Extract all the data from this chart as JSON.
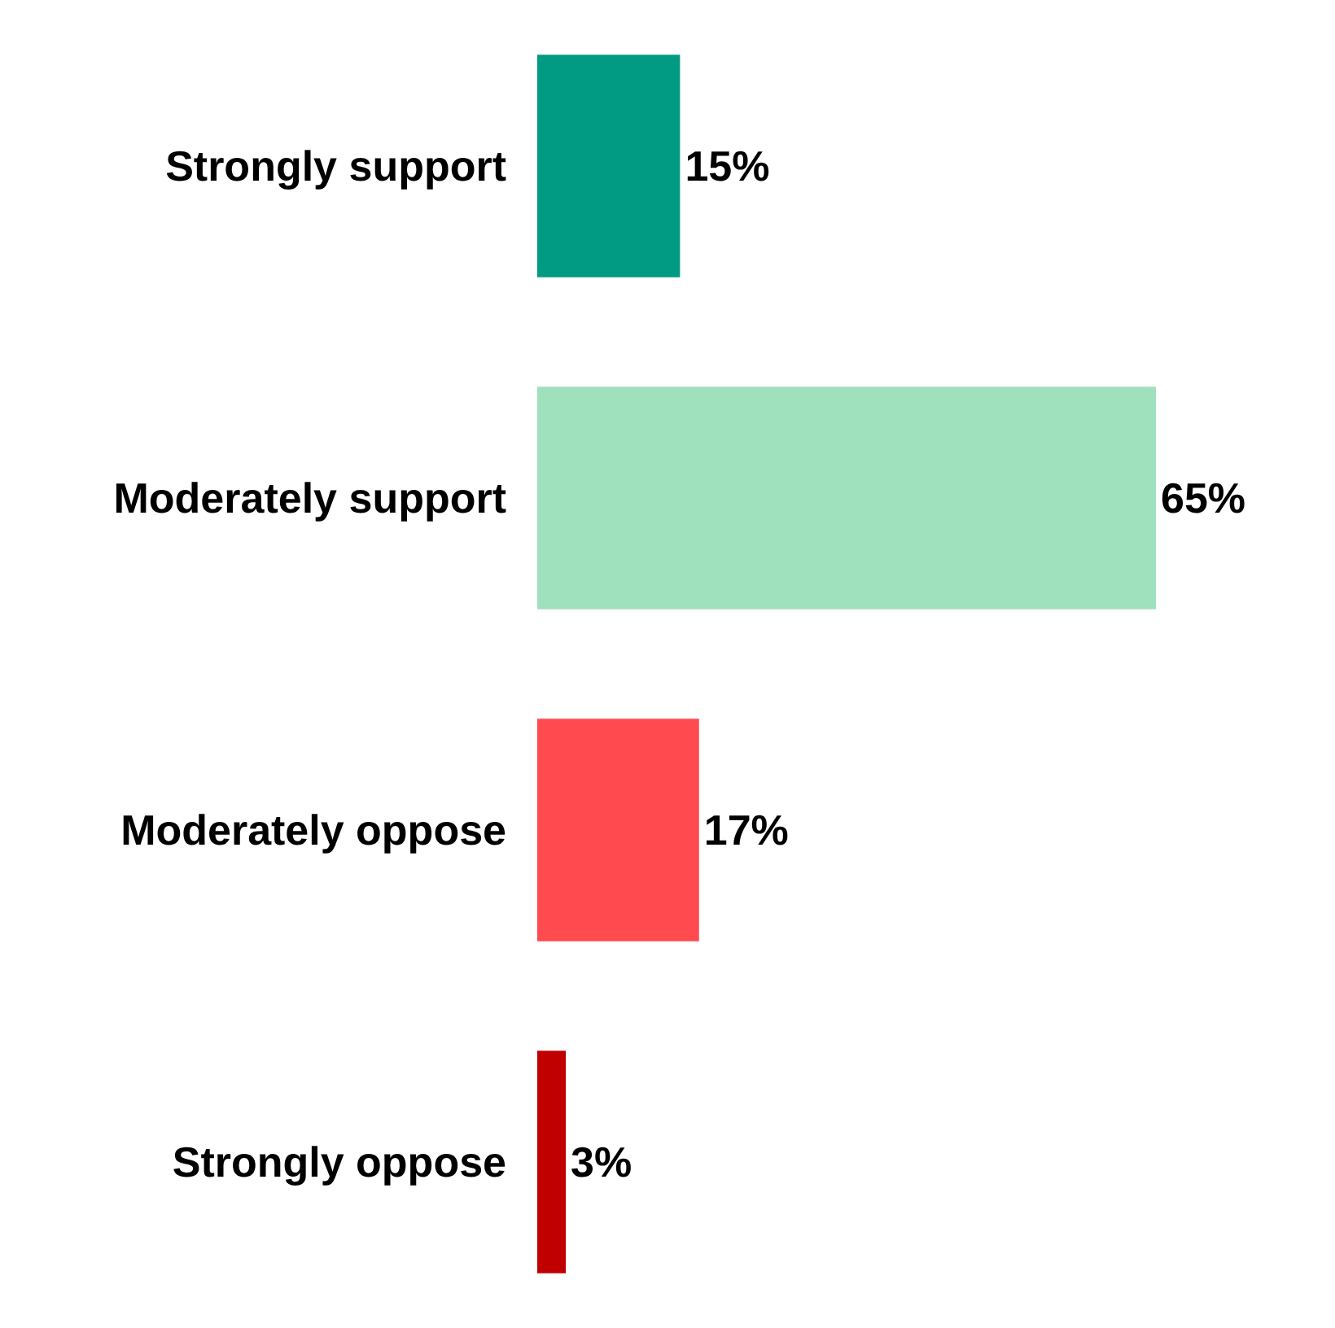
{
  "chart_data": {
    "type": "bar",
    "orientation": "horizontal",
    "categories": [
      "Strongly support",
      "Moderately support",
      "Moderately oppose",
      "Strongly oppose"
    ],
    "values": [
      15,
      65,
      17,
      3
    ],
    "colors": [
      "#009b82",
      "#9fe0bd",
      "#ff4a4f",
      "#c00000"
    ],
    "value_labels": [
      "15%",
      "65%",
      "17%",
      "3%"
    ],
    "tick_labels": "y"
  }
}
